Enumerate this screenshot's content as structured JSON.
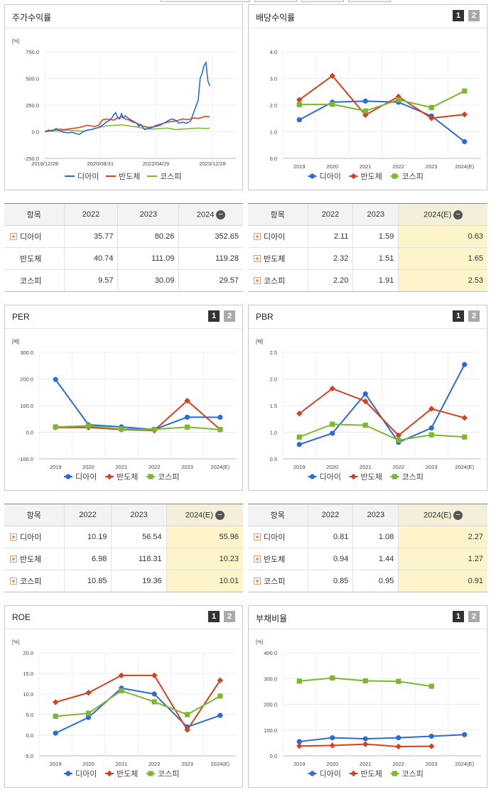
{
  "colors": {
    "dia": "#2a6bd8",
    "semi": "#d6401c",
    "kospi": "#7cb82f"
  },
  "legend": [
    "디아이",
    "반도체",
    "코스피"
  ],
  "stock_return": {
    "title": "주가수익률",
    "table": {
      "head": [
        "항목",
        "2022",
        "2023",
        "2024"
      ],
      "rows": [
        {
          "name": "디아이",
          "expand": true,
          "vals": [
            "35.77",
            "80.26",
            "352.65"
          ]
        },
        {
          "name": "반도체",
          "expand": false,
          "vals": [
            "40.74",
            "111.09",
            "119.28"
          ]
        },
        {
          "name": "코스피",
          "expand": false,
          "vals": [
            "9.57",
            "30.09",
            "29.57"
          ]
        }
      ]
    }
  },
  "dividend": {
    "title": "배당수익률",
    "btn1": "1",
    "btn2": "2",
    "table": {
      "head": [
        "항목",
        "2022",
        "2023",
        "2024(E)"
      ],
      "rows": [
        {
          "name": "디아이",
          "expand": true,
          "vals": [
            "2.11",
            "1.59",
            "0.63"
          ]
        },
        {
          "name": "반도체",
          "expand": true,
          "vals": [
            "2.32",
            "1.51",
            "1.65"
          ]
        },
        {
          "name": "코스피",
          "expand": true,
          "vals": [
            "2.20",
            "1.91",
            "2.53"
          ]
        }
      ]
    }
  },
  "per": {
    "title": "PER",
    "btn1": "1",
    "btn2": "2",
    "table": {
      "head": [
        "항목",
        "2022",
        "2023",
        "2024(E)"
      ],
      "rows": [
        {
          "name": "디아이",
          "expand": true,
          "vals": [
            "10.19",
            "56.54",
            "55.96"
          ]
        },
        {
          "name": "반도체",
          "expand": true,
          "vals": [
            "6.98",
            "118.31",
            "10.23"
          ]
        },
        {
          "name": "코스피",
          "expand": true,
          "vals": [
            "10.85",
            "19.36",
            "10.01"
          ]
        }
      ]
    }
  },
  "pbr": {
    "title": "PBR",
    "btn1": "1",
    "btn2": "2",
    "table": {
      "head": [
        "항목",
        "2022",
        "2023",
        "2024(E)"
      ],
      "rows": [
        {
          "name": "디아이",
          "expand": true,
          "vals": [
            "0.81",
            "1.08",
            "2.27"
          ]
        },
        {
          "name": "반도체",
          "expand": true,
          "vals": [
            "0.94",
            "1.44",
            "1.27"
          ]
        },
        {
          "name": "코스피",
          "expand": true,
          "vals": [
            "0.85",
            "0.95",
            "0.91"
          ]
        }
      ]
    }
  },
  "roe": {
    "title": "ROE",
    "btn1": "1",
    "btn2": "2"
  },
  "debt": {
    "title": "부채비율",
    "btn1": "1",
    "btn2": "2"
  },
  "chart_data": [
    {
      "id": "stock",
      "type": "line",
      "title": "주가수익률",
      "unit": "[%]",
      "ylim": [
        -250,
        750
      ],
      "yticks": [
        "750.0",
        "500.0",
        "250.0",
        "0.0",
        "-250.0"
      ],
      "x_ticks": [
        "2018/12/28",
        "2020/08/31",
        "2022/04/29",
        "2023/12/28"
      ],
      "x_range": [
        0,
        100
      ],
      "series": [
        {
          "name": "디아이",
          "points": [
            [
              0,
              0
            ],
            [
              2,
              15
            ],
            [
              4,
              10
            ],
            [
              6,
              30
            ],
            [
              8,
              5
            ],
            [
              10,
              -5
            ],
            [
              12,
              -10
            ],
            [
              14,
              -5
            ],
            [
              16,
              -15
            ],
            [
              18,
              -25
            ],
            [
              20,
              0
            ],
            [
              22,
              15
            ],
            [
              24,
              20
            ],
            [
              26,
              30
            ],
            [
              28,
              40
            ],
            [
              30,
              60
            ],
            [
              32,
              90
            ],
            [
              34,
              110
            ],
            [
              35,
              130
            ],
            [
              36,
              160
            ],
            [
              37,
              180
            ],
            [
              38,
              130
            ],
            [
              39,
              120
            ],
            [
              40,
              170
            ],
            [
              41,
              130
            ],
            [
              42,
              150
            ],
            [
              44,
              120
            ],
            [
              46,
              100
            ],
            [
              48,
              80
            ],
            [
              49,
              50
            ],
            [
              50,
              70
            ],
            [
              52,
              20
            ],
            [
              54,
              30
            ],
            [
              56,
              40
            ],
            [
              58,
              60
            ],
            [
              60,
              70
            ],
            [
              62,
              80
            ],
            [
              64,
              100
            ],
            [
              66,
              120
            ],
            [
              68,
              110
            ],
            [
              70,
              80
            ],
            [
              72,
              90
            ],
            [
              74,
              80
            ],
            [
              76,
              100
            ],
            [
              78,
              200
            ],
            [
              80,
              300
            ],
            [
              81,
              500
            ],
            [
              82,
              550
            ],
            [
              83,
              620
            ],
            [
              84,
              650
            ],
            [
              85,
              480
            ],
            [
              86,
              430
            ]
          ]
        },
        {
          "name": "반도체",
          "points": [
            [
              0,
              0
            ],
            [
              2,
              10
            ],
            [
              4,
              15
            ],
            [
              6,
              20
            ],
            [
              8,
              25
            ],
            [
              10,
              20
            ],
            [
              12,
              25
            ],
            [
              14,
              30
            ],
            [
              16,
              35
            ],
            [
              18,
              40
            ],
            [
              20,
              50
            ],
            [
              22,
              60
            ],
            [
              24,
              55
            ],
            [
              26,
              50
            ],
            [
              28,
              60
            ],
            [
              30,
              110
            ],
            [
              32,
              120
            ],
            [
              34,
              115
            ],
            [
              36,
              110
            ],
            [
              38,
              130
            ],
            [
              40,
              140
            ],
            [
              42,
              120
            ],
            [
              44,
              110
            ],
            [
              46,
              90
            ],
            [
              48,
              80
            ],
            [
              50,
              60
            ],
            [
              52,
              50
            ],
            [
              54,
              40
            ],
            [
              56,
              45
            ],
            [
              58,
              50
            ],
            [
              60,
              60
            ],
            [
              62,
              80
            ],
            [
              64,
              90
            ],
            [
              66,
              95
            ],
            [
              68,
              100
            ],
            [
              70,
              110
            ],
            [
              72,
              120
            ],
            [
              74,
              115
            ],
            [
              76,
              120
            ],
            [
              78,
              130
            ],
            [
              80,
              125
            ],
            [
              82,
              135
            ],
            [
              84,
              145
            ],
            [
              86,
              140
            ]
          ]
        },
        {
          "name": "코스피",
          "points": [
            [
              0,
              0
            ],
            [
              4,
              5
            ],
            [
              8,
              10
            ],
            [
              12,
              15
            ],
            [
              16,
              10
            ],
            [
              20,
              5
            ],
            [
              24,
              20
            ],
            [
              28,
              40
            ],
            [
              32,
              55
            ],
            [
              36,
              60
            ],
            [
              40,
              65
            ],
            [
              44,
              55
            ],
            [
              48,
              45
            ],
            [
              52,
              30
            ],
            [
              56,
              25
            ],
            [
              60,
              30
            ],
            [
              64,
              35
            ],
            [
              68,
              20
            ],
            [
              72,
              25
            ],
            [
              76,
              30
            ],
            [
              80,
              35
            ],
            [
              84,
              30
            ],
            [
              86,
              35
            ]
          ]
        }
      ]
    },
    {
      "id": "dividend",
      "type": "line",
      "title": "배당수익률",
      "categories": [
        "2019",
        "2020",
        "2021",
        "2022",
        "2023",
        "2024(E)"
      ],
      "ylim": [
        0,
        4
      ],
      "yticks": [
        "4.0",
        "3.0",
        "2.0",
        "1.0",
        "0.0"
      ],
      "series": [
        {
          "name": "디아이",
          "values": [
            1.45,
            2.11,
            2.15,
            2.11,
            1.59,
            0.63
          ]
        },
        {
          "name": "반도체",
          "values": [
            2.2,
            3.1,
            1.63,
            2.32,
            1.51,
            1.65
          ]
        },
        {
          "name": "코스피",
          "values": [
            2.02,
            2.03,
            1.78,
            2.2,
            1.91,
            2.53
          ]
        }
      ]
    },
    {
      "id": "per",
      "type": "line",
      "title": "PER",
      "unit": "[배]",
      "categories": [
        "2019",
        "2020",
        "2021",
        "2022",
        "2023",
        "2024(E)"
      ],
      "ylim": [
        -100,
        300
      ],
      "yticks": [
        "300.0",
        "200.0",
        "100.0",
        "0.0",
        "-100.0"
      ],
      "series": [
        {
          "name": "디아이",
          "values": [
            198,
            28,
            20,
            10.19,
            56.54,
            55.96
          ]
        },
        {
          "name": "반도체",
          "values": [
            18,
            18,
            10,
            6.98,
            118.31,
            10.23
          ]
        },
        {
          "name": "코스피",
          "values": [
            20,
            24,
            12,
            10.85,
            19.36,
            10.01
          ]
        }
      ]
    },
    {
      "id": "pbr",
      "type": "line",
      "title": "PBR",
      "unit": "[배]",
      "categories": [
        "2019",
        "2020",
        "2021",
        "2022",
        "2023",
        "2024(E)"
      ],
      "ylim": [
        0.5,
        2.5
      ],
      "yticks": [
        "2.5",
        "2.0",
        "1.5",
        "1.0",
        "0.5"
      ],
      "series": [
        {
          "name": "디아이",
          "values": [
            0.77,
            0.98,
            1.72,
            0.81,
            1.08,
            2.27
          ]
        },
        {
          "name": "반도체",
          "values": [
            1.35,
            1.82,
            1.58,
            0.94,
            1.44,
            1.27
          ]
        },
        {
          "name": "코스피",
          "values": [
            0.91,
            1.15,
            1.13,
            0.85,
            0.95,
            0.91
          ]
        }
      ]
    },
    {
      "id": "roe",
      "type": "line",
      "title": "ROE",
      "unit": "[%]",
      "categories": [
        "2019",
        "2020",
        "2021",
        "2022",
        "2023",
        "2024(E)"
      ],
      "ylim": [
        -5,
        20
      ],
      "yticks": [
        "20.0",
        "15.0",
        "10.0",
        "5.0",
        "0.0",
        "-5.0"
      ],
      "series": [
        {
          "name": "디아이",
          "values": [
            0.5,
            4.3,
            11.4,
            10.0,
            2.0,
            4.8
          ]
        },
        {
          "name": "반도체",
          "values": [
            8.0,
            10.3,
            14.5,
            14.5,
            1.3,
            13.3
          ]
        },
        {
          "name": "코스피",
          "values": [
            4.6,
            5.3,
            10.8,
            8.1,
            5.0,
            9.5
          ]
        }
      ]
    },
    {
      "id": "debt",
      "type": "line",
      "title": "부채비율",
      "unit": "[%]",
      "categories": [
        "2019",
        "2020",
        "2021",
        "2022",
        "2023",
        "2024(E)"
      ],
      "ylim": [
        0,
        400
      ],
      "yticks": [
        "400.0",
        "300.0",
        "200.0",
        "100.0",
        "0.0"
      ],
      "series": [
        {
          "name": "디아이",
          "values": [
            55,
            70,
            66,
            70,
            76,
            82
          ]
        },
        {
          "name": "반도체",
          "values": [
            38,
            40,
            45,
            36,
            37,
            null
          ]
        },
        {
          "name": "코스피",
          "values": [
            290,
            302,
            291,
            289,
            270,
            null
          ]
        }
      ]
    }
  ]
}
